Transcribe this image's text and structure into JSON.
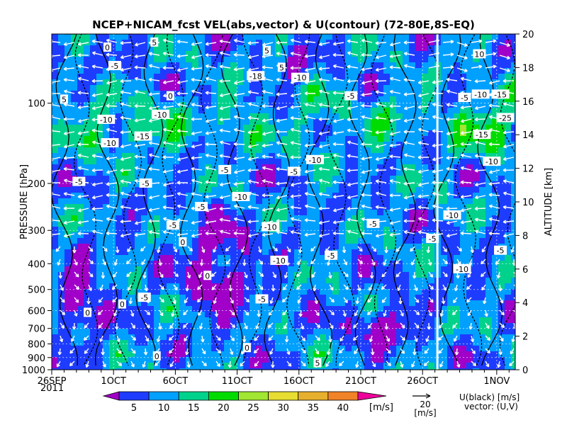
{
  "chart_data": {
    "type": "heatmap",
    "title": "NCEP+NICAM_fcst VEL(abs,vector) & U(contour)   (72-80E,8S-EQ)",
    "ylabel_left": "PRESSURE [hPa]",
    "ylabel_right": "ALTITUDE [km]",
    "year_label": "2011",
    "x_tick_labels": [
      "26SEP",
      "1OCT",
      "6OCT",
      "11OCT",
      "16OCT",
      "21OCT",
      "26OCT",
      "1NOV"
    ],
    "x_tick_days": [
      0,
      5,
      10,
      15,
      20,
      25,
      30,
      36
    ],
    "x_range_days": [
      0,
      37.5
    ],
    "analysis_forecast_split_day": 31.2,
    "pressure_ticks": [
      100,
      200,
      300,
      400,
      500,
      600,
      700,
      800,
      900,
      1000
    ],
    "pressure_range": [
      1000,
      55
    ],
    "altitude_ticks_km": [
      0,
      2,
      4,
      6,
      8,
      10,
      12,
      14,
      16,
      18,
      20
    ],
    "colorbar": {
      "levels": [
        5,
        10,
        15,
        20,
        25,
        30,
        35,
        40
      ],
      "colors": [
        "#a000c8",
        "#1e3cff",
        "#00a0ff",
        "#00d28c",
        "#00dc00",
        "#a0e632",
        "#e6dc32",
        "#e6af2d",
        "#f08228",
        "#f0009b"
      ],
      "unit": "[m/s]"
    },
    "vector_ref": {
      "value": "20",
      "unit": "[m/s]"
    },
    "legend_u": "U(black) [m/s]",
    "legend_vec": "vector: (U,V)",
    "contour_labels": [
      {
        "day": 4.5,
        "alt_km": 19.2,
        "text": "0"
      },
      {
        "day": 8.3,
        "alt_km": 19.5,
        "text": "5"
      },
      {
        "day": 5.1,
        "alt_km": 18.1,
        "text": "-5"
      },
      {
        "day": 1.0,
        "alt_km": 16.1,
        "text": "5"
      },
      {
        "day": 9.6,
        "alt_km": 16.3,
        "text": "0"
      },
      {
        "day": 4.4,
        "alt_km": 14.9,
        "text": "-10"
      },
      {
        "day": 7.4,
        "alt_km": 13.9,
        "text": "-15"
      },
      {
        "day": 4.7,
        "alt_km": 13.5,
        "text": "-10"
      },
      {
        "day": 8.8,
        "alt_km": 15.2,
        "text": "-10"
      },
      {
        "day": 17.4,
        "alt_km": 19.0,
        "text": "5"
      },
      {
        "day": 18.6,
        "alt_km": 18.0,
        "text": "5"
      },
      {
        "day": 16.5,
        "alt_km": 17.5,
        "text": "-18"
      },
      {
        "day": 20.1,
        "alt_km": 17.4,
        "text": "-10"
      },
      {
        "day": 24.2,
        "alt_km": 16.3,
        "text": "-5"
      },
      {
        "day": 2.2,
        "alt_km": 11.2,
        "text": "-5"
      },
      {
        "day": 7.6,
        "alt_km": 11.1,
        "text": "-5"
      },
      {
        "day": 12.1,
        "alt_km": 9.7,
        "text": "-5"
      },
      {
        "day": 14.0,
        "alt_km": 11.9,
        "text": "-5"
      },
      {
        "day": 15.3,
        "alt_km": 10.3,
        "text": "-10"
      },
      {
        "day": 21.3,
        "alt_km": 12.5,
        "text": "-10"
      },
      {
        "day": 19.6,
        "alt_km": 11.8,
        "text": "-5"
      },
      {
        "day": 9.8,
        "alt_km": 8.6,
        "text": "-5"
      },
      {
        "day": 10.6,
        "alt_km": 7.6,
        "text": "0"
      },
      {
        "day": 17.7,
        "alt_km": 8.5,
        "text": "-10"
      },
      {
        "day": 18.4,
        "alt_km": 6.5,
        "text": "-10"
      },
      {
        "day": 22.6,
        "alt_km": 6.8,
        "text": "-5"
      },
      {
        "day": 26.0,
        "alt_km": 8.7,
        "text": "-5"
      },
      {
        "day": 2.9,
        "alt_km": 3.4,
        "text": "0"
      },
      {
        "day": 5.7,
        "alt_km": 3.9,
        "text": "0"
      },
      {
        "day": 7.5,
        "alt_km": 4.3,
        "text": "-5"
      },
      {
        "day": 12.6,
        "alt_km": 5.6,
        "text": "0"
      },
      {
        "day": 17.0,
        "alt_km": 4.2,
        "text": "-5"
      },
      {
        "day": 8.5,
        "alt_km": 0.8,
        "text": "0"
      },
      {
        "day": 15.8,
        "alt_km": 1.3,
        "text": "0"
      },
      {
        "day": 21.5,
        "alt_km": 0.4,
        "text": "5"
      },
      {
        "day": 30.8,
        "alt_km": 7.8,
        "text": "-5"
      },
      {
        "day": 32.4,
        "alt_km": 9.2,
        "text": "-10"
      },
      {
        "day": 33.2,
        "alt_km": 6.0,
        "text": "-10"
      },
      {
        "day": 34.6,
        "alt_km": 18.8,
        "text": "10"
      },
      {
        "day": 33.4,
        "alt_km": 16.2,
        "text": "-5"
      },
      {
        "day": 34.7,
        "alt_km": 16.4,
        "text": "-10"
      },
      {
        "day": 36.3,
        "alt_km": 16.4,
        "text": "-15"
      },
      {
        "day": 34.8,
        "alt_km": 14.0,
        "text": "-15"
      },
      {
        "day": 36.7,
        "alt_km": 15.0,
        "text": "-25"
      },
      {
        "day": 35.6,
        "alt_km": 12.4,
        "text": "-10"
      },
      {
        "day": 36.3,
        "alt_km": 7.1,
        "text": "-5"
      }
    ]
  }
}
